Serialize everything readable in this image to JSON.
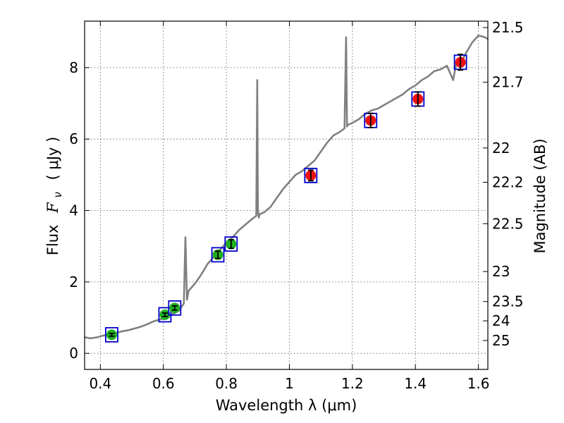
{
  "chart_data": {
    "type": "scatter",
    "xlabel": "Wavelength  λ (μm)",
    "ylabel_prefix": "Flux",
    "ylabel_symbol": "F",
    "ylabel_subscript": "ν",
    "ylabel_suffix": "( μJy )",
    "ylabel_right": "Magnitude (AB)",
    "xlim": [
      0.35,
      1.63
    ],
    "ylim": [
      -0.45,
      9.3
    ],
    "grid": true,
    "x_ticks": [
      {
        "value": 0.4,
        "label": "0.4"
      },
      {
        "value": 0.6,
        "label": "0.6"
      },
      {
        "value": 0.8,
        "label": "0.8"
      },
      {
        "value": 1.0,
        "label": "1"
      },
      {
        "value": 1.2,
        "label": "1.2"
      },
      {
        "value": 1.4,
        "label": "1.4"
      },
      {
        "value": 1.6,
        "label": "1.6"
      }
    ],
    "y_ticks": [
      {
        "value": 0,
        "label": "0"
      },
      {
        "value": 2,
        "label": "2"
      },
      {
        "value": 4,
        "label": "4"
      },
      {
        "value": 6,
        "label": "6"
      },
      {
        "value": 8,
        "label": "8"
      }
    ],
    "y_right_ticks": [
      {
        "label": "21.5",
        "flux": 9.12
      },
      {
        "label": "21.7",
        "flux": 7.59
      },
      {
        "label": "22",
        "flux": 5.75
      },
      {
        "label": "22.2",
        "flux": 4.79
      },
      {
        "label": "22.5",
        "flux": 3.63
      },
      {
        "label": "23",
        "flux": 2.29
      },
      {
        "label": "23.5",
        "flux": 1.45
      },
      {
        "label": "24",
        "flux": 0.91
      },
      {
        "label": "25",
        "flux": 0.36
      }
    ],
    "series": [
      {
        "name": "spectrum",
        "kind": "line",
        "color": "#808080",
        "x": [
          0.35,
          0.37,
          0.39,
          0.41,
          0.43,
          0.45,
          0.47,
          0.49,
          0.51,
          0.53,
          0.55,
          0.57,
          0.59,
          0.61,
          0.63,
          0.65,
          0.665,
          0.67,
          0.675,
          0.68,
          0.69,
          0.7,
          0.72,
          0.74,
          0.76,
          0.78,
          0.8,
          0.82,
          0.84,
          0.86,
          0.88,
          0.895,
          0.898,
          0.9,
          0.903,
          0.906,
          0.92,
          0.94,
          0.96,
          0.98,
          1.0,
          1.02,
          1.04,
          1.06,
          1.08,
          1.1,
          1.12,
          1.14,
          1.16,
          1.175,
          1.18,
          1.183,
          1.186,
          1.2,
          1.22,
          1.24,
          1.26,
          1.28,
          1.3,
          1.32,
          1.34,
          1.36,
          1.38,
          1.4,
          1.42,
          1.44,
          1.46,
          1.48,
          1.5,
          1.52,
          1.53,
          1.54,
          1.56,
          1.58,
          1.6,
          1.62,
          1.63
        ],
        "y": [
          0.45,
          0.42,
          0.45,
          0.5,
          0.52,
          0.57,
          0.62,
          0.65,
          0.7,
          0.75,
          0.82,
          0.9,
          0.95,
          1.0,
          1.1,
          1.2,
          1.4,
          3.25,
          1.5,
          1.75,
          1.85,
          1.95,
          2.2,
          2.5,
          2.7,
          2.9,
          3.1,
          3.25,
          3.45,
          3.6,
          3.75,
          3.85,
          7.65,
          4.0,
          3.8,
          3.9,
          3.95,
          4.1,
          4.35,
          4.6,
          4.8,
          5.0,
          5.1,
          5.25,
          5.4,
          5.65,
          5.9,
          6.1,
          6.2,
          6.3,
          8.85,
          6.35,
          6.4,
          6.45,
          6.55,
          6.7,
          6.8,
          6.85,
          6.95,
          7.05,
          7.15,
          7.25,
          7.4,
          7.5,
          7.65,
          7.75,
          7.9,
          7.95,
          8.05,
          7.65,
          8.15,
          8.05,
          8.4,
          8.7,
          8.9,
          8.85,
          8.8
        ]
      },
      {
        "name": "optical",
        "kind": "points",
        "color": "#1fb01f",
        "points": [
          {
            "x": 0.436,
            "y": 0.52,
            "err": 0.04
          },
          {
            "x": 0.605,
            "y": 1.08,
            "err": 0.05
          },
          {
            "x": 0.636,
            "y": 1.27,
            "err": 0.06
          },
          {
            "x": 0.773,
            "y": 2.76,
            "err": 0.1
          },
          {
            "x": 0.815,
            "y": 3.06,
            "err": 0.12
          }
        ]
      },
      {
        "name": "near-infrared",
        "kind": "points",
        "color": "#ee1111",
        "points": [
          {
            "x": 1.068,
            "y": 4.98,
            "err": 0.15
          },
          {
            "x": 1.258,
            "y": 6.52,
            "err": 0.2
          },
          {
            "x": 1.408,
            "y": 7.12,
            "err": 0.2
          },
          {
            "x": 1.543,
            "y": 8.15,
            "err": 0.22
          }
        ]
      }
    ],
    "model_box_color": "#0000cc",
    "errorbar_color": "#000000"
  }
}
